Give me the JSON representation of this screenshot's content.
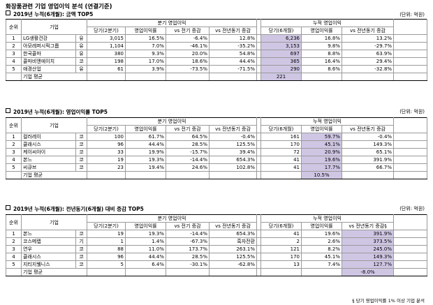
{
  "page_title": "화장품관련 기업 영업이익 분석 (연결기준)",
  "unit_label": "(단위: 억원)",
  "headers": {
    "rank": "순위",
    "company": "기업",
    "quarter_group": "분기 영업이익",
    "cumulative_group": "누적 영업이익",
    "current_quarter": "당기(2분기)",
    "op_margin": "영업이익률",
    "vs_prev_quarter": "vs 전기 증감",
    "vs_prev_year": "vs 전년동기 증감",
    "current_cumulative": "당기(6개월)",
    "vs_prev_year_sup": "vs 전년동기 증감§"
  },
  "avg_label": "기업 평균",
  "sections": [
    {
      "title": "2019년 누적(6개월):  금액 TOP5",
      "rows": [
        {
          "rank": "1",
          "company": "LG생활건강",
          "market": "유",
          "q_cur": "3,015",
          "q_margin": "16.5%",
          "q_vs_prev": "-6.4%",
          "q_vs_yoy": "12.8%",
          "c_cur": "6,236",
          "c_margin": "16.8%",
          "c_vs_yoy": "13.2%"
        },
        {
          "rank": "2",
          "company": "아모레퍼시픽그룹",
          "market": "유",
          "q_cur": "1,104",
          "q_margin": "7.0%",
          "q_vs_prev": "-46.1%",
          "q_vs_yoy": "-35.2%",
          "c_cur": "3,153",
          "c_margin": "9.8%",
          "c_vs_yoy": "-29.7%"
        },
        {
          "rank": "3",
          "company": "한국콜마",
          "market": "유",
          "q_cur": "380",
          "q_margin": "9.3%",
          "q_vs_prev": "20.0%",
          "q_vs_yoy": "54.8%",
          "c_cur": "697",
          "c_margin": "8.8%",
          "c_vs_yoy": "63.9%"
        },
        {
          "rank": "4",
          "company": "콜마비앤에이치",
          "market": "코",
          "q_cur": "198",
          "q_margin": "17.0%",
          "q_vs_prev": "18.6%",
          "q_vs_yoy": "44.4%",
          "c_cur": "365",
          "c_margin": "16.4%",
          "c_vs_yoy": "29.4%"
        },
        {
          "rank": "5",
          "company": "애경산업",
          "market": "유",
          "q_cur": "61",
          "q_margin": "3.9%",
          "q_vs_prev": "-73.5%",
          "q_vs_yoy": "-71.5%",
          "c_cur": "290",
          "c_margin": "8.6%",
          "c_vs_yoy": "-32.8%"
        }
      ],
      "avg": {
        "c_cur": "221",
        "c_margin": "",
        "c_vs_yoy": ""
      }
    },
    {
      "title": "2019년 누적(6개월):  영업이익률 TOP5",
      "rows": [
        {
          "rank": "1",
          "company": "컬러레이",
          "market": "코",
          "q_cur": "100",
          "q_margin": "61.7%",
          "q_vs_prev": "64.5%",
          "q_vs_yoy": "-0.4%",
          "c_cur": "161",
          "c_margin": "59.7%",
          "c_vs_yoy": "-0.4%"
        },
        {
          "rank": "2",
          "company": "클래시스",
          "market": "코",
          "q_cur": "96",
          "q_margin": "44.4%",
          "q_vs_prev": "28.5%",
          "q_vs_yoy": "125.5%",
          "c_cur": "170",
          "c_margin": "45.1%",
          "c_vs_yoy": "149.3%"
        },
        {
          "rank": "3",
          "company": "케이씨아이",
          "market": "코",
          "q_cur": "33",
          "q_margin": "19.9%",
          "q_vs_prev": "-15.7%",
          "q_vs_yoy": "39.4%",
          "c_cur": "72",
          "c_margin": "20.9%",
          "c_vs_yoy": "65.1%"
        },
        {
          "rank": "4",
          "company": "본느",
          "market": "코",
          "q_cur": "19",
          "q_margin": "19.3%",
          "q_vs_prev": "-14.4%",
          "q_vs_yoy": "654.3%",
          "c_cur": "41",
          "c_margin": "19.6%",
          "c_vs_yoy": "391.9%"
        },
        {
          "rank": "5",
          "company": "씨큐브",
          "market": "코",
          "q_cur": "23",
          "q_margin": "19.4%",
          "q_vs_prev": "24.6%",
          "q_vs_yoy": "102.8%",
          "c_cur": "41",
          "c_margin": "17.7%",
          "c_vs_yoy": "66.7%"
        }
      ],
      "avg": {
        "c_cur": "",
        "c_margin": "10.5%",
        "c_vs_yoy": ""
      }
    },
    {
      "title": "2019년 누적(6개월):  전년동기(6개월) 대비 증감 TOP5",
      "rows": [
        {
          "rank": "1",
          "company": "본느",
          "market": "코",
          "q_cur": "19",
          "q_margin": "19.3%",
          "q_vs_prev": "-14.4%",
          "q_vs_yoy": "654.3%",
          "c_cur": "41",
          "c_margin": "19.6%",
          "c_vs_yoy": "391.9%"
        },
        {
          "rank": "2",
          "company": "코스메랩",
          "market": "기",
          "q_cur": "1",
          "q_margin": "1.4%",
          "q_vs_prev": "-67.3%",
          "q_vs_yoy": "흑자전환",
          "c_cur": "2",
          "c_margin": "2.6%",
          "c_vs_yoy": "373.5%"
        },
        {
          "rank": "3",
          "company": "연우",
          "market": "코",
          "q_cur": "88",
          "q_margin": "11.0%",
          "q_vs_prev": "173.7%",
          "q_vs_yoy": "263.1%",
          "c_cur": "121",
          "c_margin": "8.2%",
          "c_vs_yoy": "245.0%"
        },
        {
          "rank": "4",
          "company": "클래시스",
          "market": "코",
          "q_cur": "96",
          "q_margin": "44.4%",
          "q_vs_prev": "28.5%",
          "q_vs_yoy": "125.5%",
          "c_cur": "170",
          "c_margin": "45.1%",
          "c_vs_yoy": "149.3%"
        },
        {
          "rank": "5",
          "company": "지티지웰니스",
          "market": "코",
          "q_cur": "5",
          "q_margin": "6.4%",
          "q_vs_prev": "-30.1%",
          "q_vs_yoy": "-62.8%",
          "c_cur": "13",
          "c_margin": "7.4%",
          "c_vs_yoy": "127.7%"
        }
      ],
      "avg": {
        "c_cur": "",
        "c_margin": "",
        "c_vs_yoy": "-8.0%"
      }
    }
  ],
  "footnote": "§ 당기 영업이익률 1% 이상 기업 분석"
}
